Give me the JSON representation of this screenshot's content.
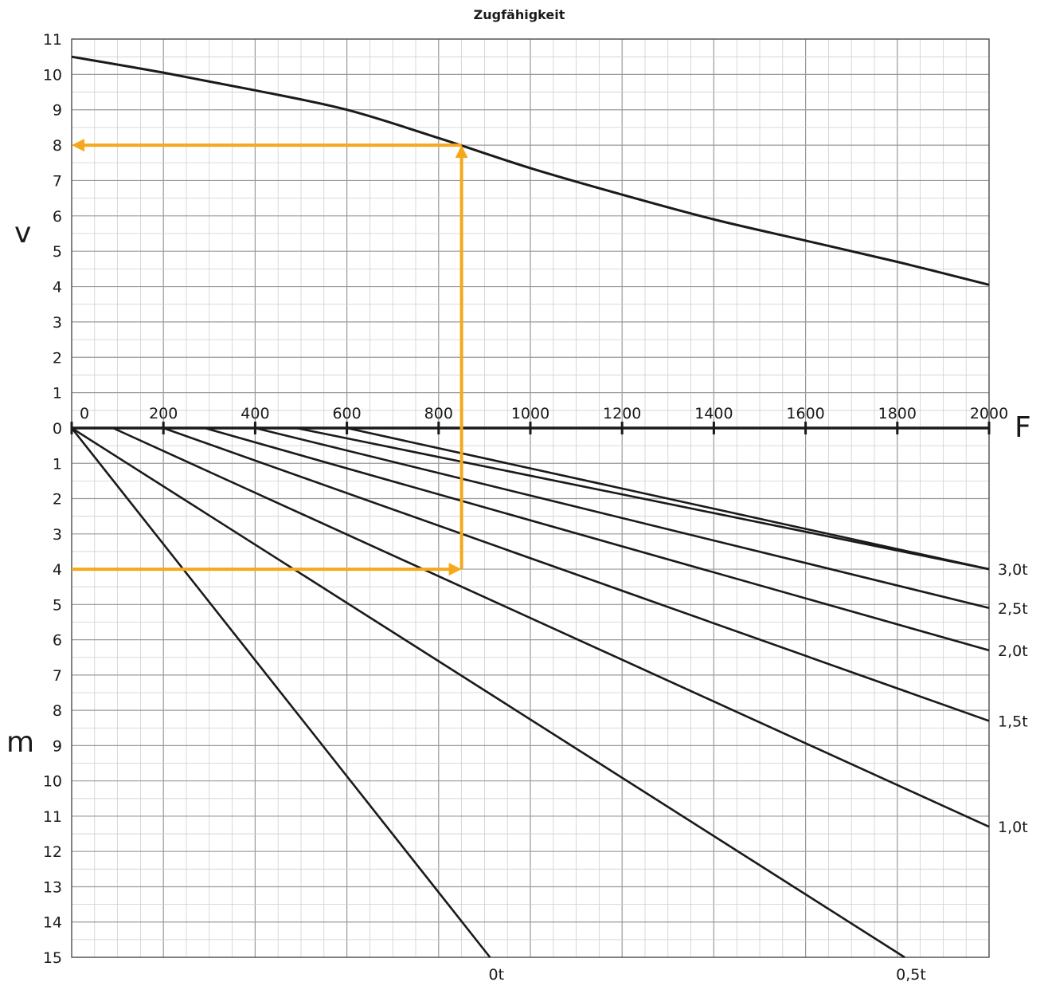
{
  "chart_data": {
    "type": "line",
    "title": "Zugfähigkeit",
    "xlabel": "F",
    "ylabel_top": "v",
    "ylabel_bottom": "m",
    "x_ticks": [
      0,
      200,
      400,
      600,
      800,
      1000,
      1200,
      1400,
      1600,
      1800,
      2000
    ],
    "v_ticks": [
      0,
      1,
      2,
      3,
      4,
      5,
      6,
      7,
      8,
      9,
      10,
      11
    ],
    "m_ticks": [
      1,
      2,
      3,
      4,
      5,
      6,
      7,
      8,
      9,
      10,
      11,
      12,
      13,
      14,
      15
    ],
    "xlim": [
      0,
      2000
    ],
    "vlim": [
      0,
      11
    ],
    "mlim": [
      0,
      15
    ],
    "grid": true,
    "speed_curve": {
      "x": [
        0,
        200,
        400,
        600,
        800,
        1000,
        1200,
        1400,
        1600,
        1800,
        2000
      ],
      "v": [
        10.5,
        10.05,
        9.55,
        9.0,
        8.2,
        7.35,
        6.6,
        5.9,
        5.3,
        4.7,
        4.05
      ]
    },
    "load_lines": [
      {
        "name": "0t",
        "x": [
          0,
          912
        ],
        "m": [
          0,
          15
        ]
      },
      {
        "name": "0,5t",
        "x": [
          0,
          1816
        ],
        "m": [
          0,
          15
        ]
      },
      {
        "name": "1,0t",
        "x": [
          90,
          2000
        ],
        "m": [
          0,
          11.3
        ]
      },
      {
        "name": "1,5t",
        "x": [
          200,
          2000
        ],
        "m": [
          0,
          8.3
        ]
      },
      {
        "name": "2,0t",
        "x": [
          290,
          2000
        ],
        "m": [
          0,
          6.3
        ]
      },
      {
        "name": "2,5t",
        "x": [
          400,
          2000
        ],
        "m": [
          0,
          5.1
        ]
      },
      {
        "name": "3,0t",
        "x": [
          490,
          2000
        ],
        "m": [
          0,
          4.0
        ]
      },
      {
        "name": "",
        "x": [
          600,
          2000
        ],
        "m": [
          0,
          4.0
        ]
      }
    ],
    "right_labels": [
      {
        "text": "3,0t",
        "m": 4.0
      },
      {
        "text": "2,5t",
        "m": 5.1
      },
      {
        "text": "2,0t",
        "m": 6.3
      },
      {
        "text": "1,5t",
        "m": 8.3
      },
      {
        "text": "1,0t",
        "m": 11.3
      }
    ],
    "bottom_labels": [
      {
        "text": "0t",
        "x": 912
      },
      {
        "text": "0,5t",
        "x": 1816
      }
    ],
    "example": {
      "m": 4,
      "F": 850,
      "v": 8,
      "color": "#F5A81C"
    },
    "colors": {
      "curve": "#1a1a1a",
      "grid_major": "#9a9a9a",
      "grid_minor": "#cfcfcf",
      "highlight": "#F5A81C"
    }
  }
}
